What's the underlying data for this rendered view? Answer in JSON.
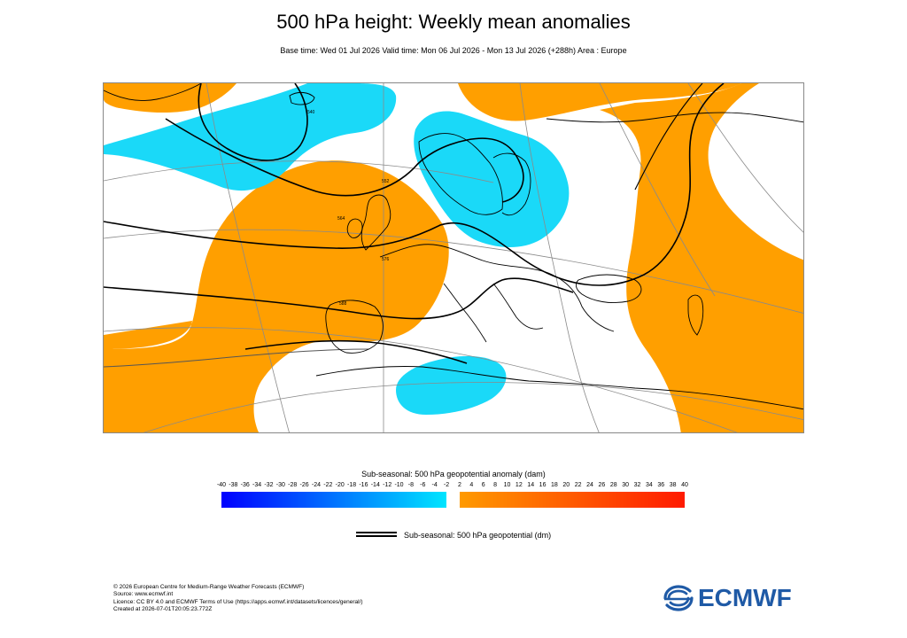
{
  "title": "500 hPa height: Weekly mean anomalies",
  "subtitle": "Base time: Wed 01 Jul 2026 Valid time: Mon 06 Jul 2026 - Mon 13 Jul 2026 (+288h) Area : Europe",
  "map": {
    "contour_labels": [
      "540",
      "552",
      "564",
      "576",
      "588"
    ]
  },
  "colorbar": {
    "title": "Sub-seasonal: 500 hPa geopotential anomaly (dam)",
    "neg_ticks": [
      "-40",
      "-38",
      "-36",
      "-34",
      "-32",
      "-30",
      "-28",
      "-26",
      "-24",
      "-22",
      "-20",
      "-18",
      "-16",
      "-14",
      "-12",
      "-10",
      "-8",
      "-6",
      "-4",
      "-2"
    ],
    "pos_ticks": [
      "2",
      "4",
      "6",
      "8",
      "10",
      "12",
      "14",
      "16",
      "18",
      "20",
      "22",
      "24",
      "26",
      "28",
      "30",
      "32",
      "34",
      "36",
      "38",
      "40"
    ],
    "neg_color_start": "#0000ff",
    "neg_color_end": "#00e5ff",
    "pos_color_start": "#ff9a00",
    "pos_color_end": "#ff1a00"
  },
  "legend": {
    "label": "Sub-seasonal: 500 hPa geopotential (dm)"
  },
  "footer": {
    "line1": "© 2026 European Centre for Medium-Range Weather Forecasts (ECMWF)",
    "line2": "Source: www.ecmwf.int",
    "line3": "Licence: CC BY 4.0 and ECMWF Terms of Use (https://apps.ecmwf.int/datasets/licences/general/)",
    "line4": "Created at 2026-07-01T20:05:23.772Z"
  },
  "logo": {
    "text": "ECMWF",
    "color": "#1f5aa6"
  },
  "colors": {
    "positive_anomaly": "#ff9f00",
    "negative_anomaly": "#1ad9f8",
    "contour": "#000000",
    "coast": "#000000",
    "grid": "#8a8a8a"
  }
}
